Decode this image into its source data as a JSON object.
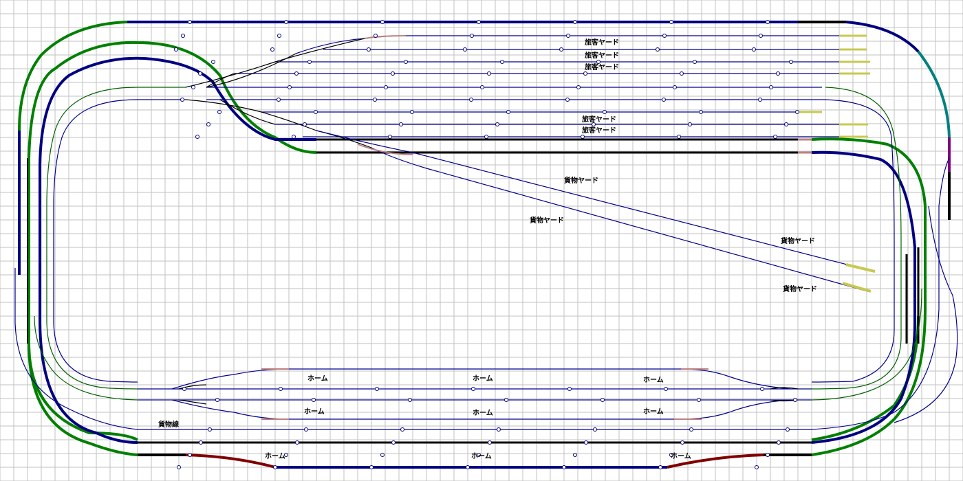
{
  "title": "",
  "colors": {
    "grid": "#c0c0c0",
    "background": "#ffffff",
    "blue_track": "#000080",
    "green_track": "#008000",
    "black_track": "#000000",
    "red_track": "#800000",
    "teal_track": "#008080",
    "magenta_track": "#800080",
    "thin_blue": "#000090",
    "thin_green": "#006000",
    "buffer": "#c8c850",
    "pink": "#c08080"
  },
  "labels": {
    "passenger_yard_1": "旅客ヤード",
    "passenger_yard_2": "旅客ヤード",
    "passenger_yard_3": "旅客ヤード",
    "passenger_yard_4": "旅客ヤード",
    "passenger_yard_5": "旅客ヤード",
    "freight_yard_1": "貨物ヤード",
    "freight_yard_2": "貨物ヤード",
    "freight_yard_3": "貨物ヤード",
    "freight_yard_4": "貨物ヤード",
    "freight_line": "貨物線",
    "platform_upper_1": "ホーム",
    "platform_upper_2": "ホーム",
    "platform_upper_3": "ホーム",
    "platform_mid_1": "ホーム",
    "platform_mid_2": "ホーム",
    "platform_mid_3": "ホーム",
    "platform_bottom_1": "ホーム",
    "platform_bottom_2": "ホーム",
    "platform_bottom_3": "ホーム"
  }
}
